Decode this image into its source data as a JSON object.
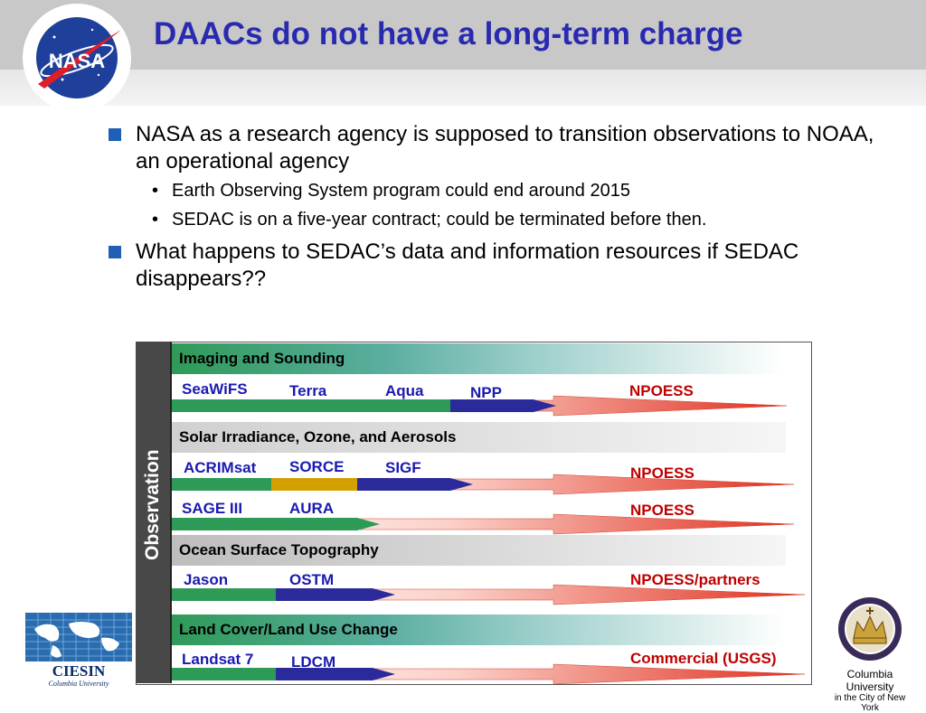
{
  "slide": {
    "title": "DAACs do not have a long-term charge",
    "bullets": [
      {
        "text": "NASA as a research agency is supposed to transition observations to NOAA, an operational agency",
        "sub": [
          "Earth Observing System program could end around 2015",
          "SEDAC is on a five-year contract; could be terminated before then."
        ]
      },
      {
        "text": "What happens to SEDAC’s data and information resources if SEDAC disappears??"
      }
    ]
  },
  "diagram": {
    "side_label": "Observation",
    "categories": [
      "Imaging and Sounding",
      "Solar Irradiance, Ozone, and Aerosols",
      "Ocean Surface Topography",
      "Land Cover/Land Use Change"
    ],
    "rows": [
      {
        "missions": [
          "SeaWiFS",
          "Terra",
          "Aqua",
          "NPP"
        ],
        "future": "NPOESS"
      },
      {
        "missions": [
          "ACRIMsat",
          "SORCE",
          "SIGF"
        ],
        "future": "NPOESS"
      },
      {
        "missions": [
          "SAGE III",
          "AURA"
        ],
        "future": "NPOESS"
      },
      {
        "missions": [
          "Jason",
          "OSTM"
        ],
        "future": "NPOESS/partners"
      },
      {
        "missions": [
          "Landsat 7",
          "LDCM"
        ],
        "future": "Commercial (USGS)"
      }
    ]
  },
  "logos": {
    "nasa": "NASA",
    "ciesin": "CIESIN",
    "ciesin_sub": "Columbia University",
    "columbia_line1": "Columbia University",
    "columbia_line2": "in the City of New York"
  },
  "colors": {
    "title": "#2a2ab0",
    "mission_label": "#1a1ab0",
    "future_label": "#c00000",
    "green": "#2e9a57",
    "navy": "#2a2a9a",
    "gold": "#d4a000",
    "red": "#e03020"
  }
}
